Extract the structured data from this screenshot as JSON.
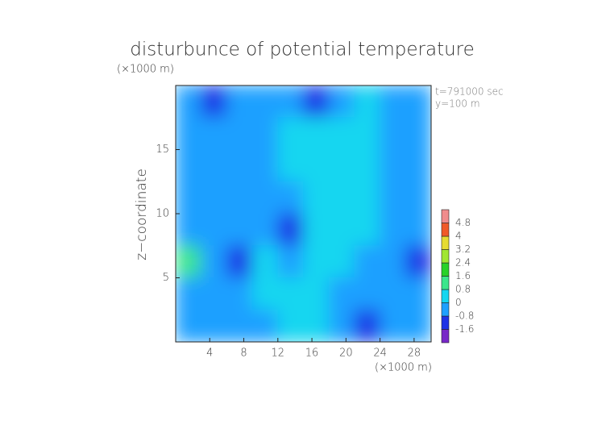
{
  "chart_data": {
    "type": "contour",
    "title": "disturbunce of potential temperature",
    "y_unit_label": "(×1000 m)",
    "x_unit_label": "(×1000 m)",
    "ylabel": "z−coordinate",
    "annotations": [
      "t=791000 sec",
      "y=100 m"
    ],
    "xlim": [
      0,
      30
    ],
    "ylim": [
      0,
      20
    ],
    "xticks": [
      4,
      8,
      12,
      16,
      20,
      24,
      28
    ],
    "yticks": [
      5,
      10,
      15
    ],
    "x": [
      1.5,
      4.5,
      7.5,
      10.5,
      13.5,
      16.5,
      19.5,
      22.5,
      25.5,
      28.5
    ],
    "y": [
      18.75,
      16.25,
      13.75,
      11.25,
      8.75,
      6.25,
      3.75,
      1.25
    ],
    "z": [
      [
        -0.5,
        -0.9,
        -0.6,
        -0.4,
        -0.3,
        -0.9,
        -0.7,
        0.6,
        -0.4,
        -0.5
      ],
      [
        -0.4,
        -0.4,
        -0.3,
        -0.3,
        0.1,
        0.1,
        0.1,
        0.1,
        -0.2,
        -0.6
      ],
      [
        -0.5,
        -0.4,
        -0.3,
        -0.4,
        0.1,
        0.2,
        0.1,
        0.2,
        -0.3,
        -0.4
      ],
      [
        -0.6,
        -0.4,
        -0.5,
        -0.3,
        -0.2,
        0.2,
        0.2,
        0.1,
        -0.3,
        -0.6
      ],
      [
        -0.3,
        -0.4,
        -0.6,
        -0.3,
        -0.9,
        0.2,
        0.2,
        0.2,
        -0.6,
        -0.4
      ],
      [
        0.9,
        -0.5,
        -1.3,
        0.6,
        -0.7,
        0.1,
        0.1,
        -0.3,
        -0.3,
        -0.8
      ],
      [
        -0.4,
        -0.4,
        -0.6,
        0.3,
        0.3,
        0.2,
        -0.3,
        -0.6,
        -0.5,
        -0.4
      ],
      [
        -0.4,
        -0.3,
        -0.3,
        -0.3,
        0.2,
        0.1,
        -0.3,
        -1.0,
        -0.7,
        -0.5
      ]
    ],
    "colorbar": {
      "levels": [
        -1.6,
        -0.8,
        0,
        0.8,
        1.6,
        2.4,
        3.2,
        4,
        4.8
      ],
      "colors": [
        "#7828c8",
        "#1e32e6",
        "#1ea0ff",
        "#14d6f0",
        "#3ce68c",
        "#28d228",
        "#a0e632",
        "#e6dc32",
        "#f05a28",
        "#f08c8c"
      ]
    }
  }
}
